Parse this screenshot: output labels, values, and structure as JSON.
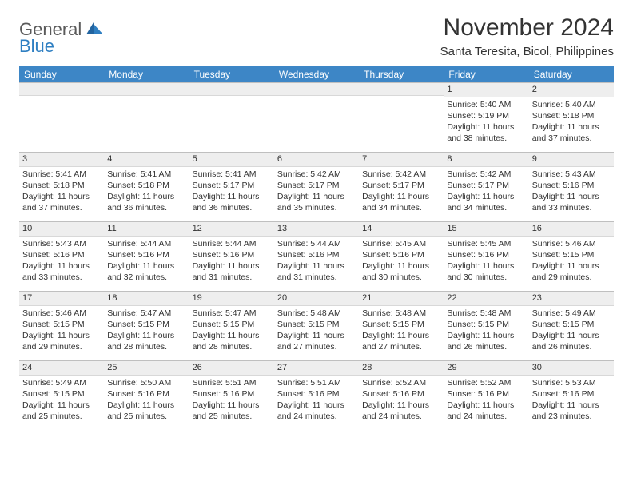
{
  "brand": {
    "general": "General",
    "blue": "Blue"
  },
  "title": "November 2024",
  "location": "Santa Teresita, Bicol, Philippines",
  "colors": {
    "header_bg": "#3d86c6",
    "header_text": "#ffffff",
    "daynum_bg": "#eeeeee",
    "grid_line": "#bfbfbf",
    "text": "#333333",
    "logo_gray": "#5a5a5a",
    "logo_blue": "#2f7fc2",
    "background": "#ffffff"
  },
  "weekdays": [
    "Sunday",
    "Monday",
    "Tuesday",
    "Wednesday",
    "Thursday",
    "Friday",
    "Saturday"
  ],
  "weeks": [
    [
      {
        "n": "",
        "lines": []
      },
      {
        "n": "",
        "lines": []
      },
      {
        "n": "",
        "lines": []
      },
      {
        "n": "",
        "lines": []
      },
      {
        "n": "",
        "lines": []
      },
      {
        "n": "1",
        "lines": [
          "Sunrise: 5:40 AM",
          "Sunset: 5:19 PM",
          "Daylight: 11 hours and 38 minutes."
        ]
      },
      {
        "n": "2",
        "lines": [
          "Sunrise: 5:40 AM",
          "Sunset: 5:18 PM",
          "Daylight: 11 hours and 37 minutes."
        ]
      }
    ],
    [
      {
        "n": "3",
        "lines": [
          "Sunrise: 5:41 AM",
          "Sunset: 5:18 PM",
          "Daylight: 11 hours and 37 minutes."
        ]
      },
      {
        "n": "4",
        "lines": [
          "Sunrise: 5:41 AM",
          "Sunset: 5:18 PM",
          "Daylight: 11 hours and 36 minutes."
        ]
      },
      {
        "n": "5",
        "lines": [
          "Sunrise: 5:41 AM",
          "Sunset: 5:17 PM",
          "Daylight: 11 hours and 36 minutes."
        ]
      },
      {
        "n": "6",
        "lines": [
          "Sunrise: 5:42 AM",
          "Sunset: 5:17 PM",
          "Daylight: 11 hours and 35 minutes."
        ]
      },
      {
        "n": "7",
        "lines": [
          "Sunrise: 5:42 AM",
          "Sunset: 5:17 PM",
          "Daylight: 11 hours and 34 minutes."
        ]
      },
      {
        "n": "8",
        "lines": [
          "Sunrise: 5:42 AM",
          "Sunset: 5:17 PM",
          "Daylight: 11 hours and 34 minutes."
        ]
      },
      {
        "n": "9",
        "lines": [
          "Sunrise: 5:43 AM",
          "Sunset: 5:16 PM",
          "Daylight: 11 hours and 33 minutes."
        ]
      }
    ],
    [
      {
        "n": "10",
        "lines": [
          "Sunrise: 5:43 AM",
          "Sunset: 5:16 PM",
          "Daylight: 11 hours and 33 minutes."
        ]
      },
      {
        "n": "11",
        "lines": [
          "Sunrise: 5:44 AM",
          "Sunset: 5:16 PM",
          "Daylight: 11 hours and 32 minutes."
        ]
      },
      {
        "n": "12",
        "lines": [
          "Sunrise: 5:44 AM",
          "Sunset: 5:16 PM",
          "Daylight: 11 hours and 31 minutes."
        ]
      },
      {
        "n": "13",
        "lines": [
          "Sunrise: 5:44 AM",
          "Sunset: 5:16 PM",
          "Daylight: 11 hours and 31 minutes."
        ]
      },
      {
        "n": "14",
        "lines": [
          "Sunrise: 5:45 AM",
          "Sunset: 5:16 PM",
          "Daylight: 11 hours and 30 minutes."
        ]
      },
      {
        "n": "15",
        "lines": [
          "Sunrise: 5:45 AM",
          "Sunset: 5:16 PM",
          "Daylight: 11 hours and 30 minutes."
        ]
      },
      {
        "n": "16",
        "lines": [
          "Sunrise: 5:46 AM",
          "Sunset: 5:15 PM",
          "Daylight: 11 hours and 29 minutes."
        ]
      }
    ],
    [
      {
        "n": "17",
        "lines": [
          "Sunrise: 5:46 AM",
          "Sunset: 5:15 PM",
          "Daylight: 11 hours and 29 minutes."
        ]
      },
      {
        "n": "18",
        "lines": [
          "Sunrise: 5:47 AM",
          "Sunset: 5:15 PM",
          "Daylight: 11 hours and 28 minutes."
        ]
      },
      {
        "n": "19",
        "lines": [
          "Sunrise: 5:47 AM",
          "Sunset: 5:15 PM",
          "Daylight: 11 hours and 28 minutes."
        ]
      },
      {
        "n": "20",
        "lines": [
          "Sunrise: 5:48 AM",
          "Sunset: 5:15 PM",
          "Daylight: 11 hours and 27 minutes."
        ]
      },
      {
        "n": "21",
        "lines": [
          "Sunrise: 5:48 AM",
          "Sunset: 5:15 PM",
          "Daylight: 11 hours and 27 minutes."
        ]
      },
      {
        "n": "22",
        "lines": [
          "Sunrise: 5:48 AM",
          "Sunset: 5:15 PM",
          "Daylight: 11 hours and 26 minutes."
        ]
      },
      {
        "n": "23",
        "lines": [
          "Sunrise: 5:49 AM",
          "Sunset: 5:15 PM",
          "Daylight: 11 hours and 26 minutes."
        ]
      }
    ],
    [
      {
        "n": "24",
        "lines": [
          "Sunrise: 5:49 AM",
          "Sunset: 5:15 PM",
          "Daylight: 11 hours and 25 minutes."
        ]
      },
      {
        "n": "25",
        "lines": [
          "Sunrise: 5:50 AM",
          "Sunset: 5:16 PM",
          "Daylight: 11 hours and 25 minutes."
        ]
      },
      {
        "n": "26",
        "lines": [
          "Sunrise: 5:51 AM",
          "Sunset: 5:16 PM",
          "Daylight: 11 hours and 25 minutes."
        ]
      },
      {
        "n": "27",
        "lines": [
          "Sunrise: 5:51 AM",
          "Sunset: 5:16 PM",
          "Daylight: 11 hours and 24 minutes."
        ]
      },
      {
        "n": "28",
        "lines": [
          "Sunrise: 5:52 AM",
          "Sunset: 5:16 PM",
          "Daylight: 11 hours and 24 minutes."
        ]
      },
      {
        "n": "29",
        "lines": [
          "Sunrise: 5:52 AM",
          "Sunset: 5:16 PM",
          "Daylight: 11 hours and 24 minutes."
        ]
      },
      {
        "n": "30",
        "lines": [
          "Sunrise: 5:53 AM",
          "Sunset: 5:16 PM",
          "Daylight: 11 hours and 23 minutes."
        ]
      }
    ]
  ]
}
